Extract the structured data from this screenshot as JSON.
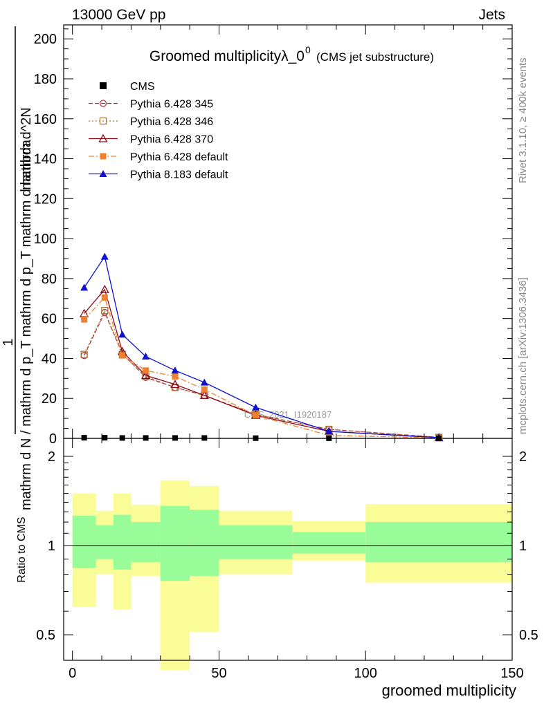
{
  "header": {
    "energy_label": "13000 GeV pp",
    "category_label": "Jets"
  },
  "title": {
    "main": "Groomed multiplicityλ_0",
    "superscript": "0",
    "sub": "(CMS jet substructure)"
  },
  "side_labels": {
    "rivet": "Rivet 3.1.10, ≥ 400k events",
    "mcplots": "mcplots.cern.ch [arXiv:1306.3436]"
  },
  "watermark": "CMS_2021_I1920187",
  "axes": {
    "main_ylabel_num": "1",
    "main_ylabel_den": "mathrm d N / mathrm d p_T mathrm d p_T mathrm d lambda",
    "main_ylabel_top": "mathrm d^2N",
    "ratio_ylabel": "Ratio to CMS",
    "xlabel": "groomed multiplicity"
  },
  "chart_data": {
    "type": "line",
    "xlim": [
      -3,
      150
    ],
    "ylim": [
      0,
      207
    ],
    "ratio_ylim": [
      0.41,
      2.3
    ],
    "x_ticks": [
      0,
      50,
      100,
      150
    ],
    "x_tick_labels": [
      "0",
      "50",
      "100",
      "150"
    ],
    "y_ticks": [
      0,
      20,
      40,
      60,
      80,
      100,
      120,
      140,
      160,
      180,
      200
    ],
    "y_tick_labels": [
      "0",
      "20",
      "40",
      "60",
      "80",
      "100",
      "120",
      "140",
      "160",
      "180",
      "200"
    ],
    "ratio_y_ticks": [
      0.5,
      1,
      2
    ],
    "ratio_y_tick_labels": [
      "0.5",
      "1",
      "2"
    ],
    "bin_edges": [
      0,
      8,
      14,
      20,
      30,
      40,
      50,
      75,
      100,
      150
    ],
    "x": [
      4,
      11,
      17,
      25,
      35,
      45,
      62.5,
      87.5,
      125
    ],
    "data_name": "CMS",
    "data_values": [
      0.3,
      0.3,
      0.2,
      0.2,
      0.2,
      0.2,
      0.1,
      0.05,
      0.02
    ],
    "series": [
      {
        "name": "Pythia 6.428 345",
        "color": "#b5323c",
        "marker": "open-circle",
        "dash": "6,3",
        "values": [
          41.5,
          63,
          42.5,
          30.5,
          25.5,
          21.5,
          12,
          4.5,
          0.5
        ]
      },
      {
        "name": "Pythia 6.428 346",
        "color": "#a07a3a",
        "marker": "open-square",
        "dash": "2,3",
        "values": [
          42,
          64,
          42,
          31,
          25.5,
          21.5,
          12,
          4.5,
          0.5
        ]
      },
      {
        "name": "Pythia 6.428 370",
        "color": "#8b0c17",
        "marker": "open-triangle",
        "dash": "",
        "values": [
          62.5,
          74.5,
          43.5,
          31.5,
          27,
          21.5,
          11.5,
          3.5,
          0.3
        ]
      },
      {
        "name": "Pythia 6.428 default",
        "color": "#f08030",
        "marker": "filled-square",
        "dash": "8,3,2,3",
        "values": [
          59.5,
          70.5,
          41.5,
          34,
          31,
          24.5,
          11.5,
          1.5,
          0.2
        ]
      },
      {
        "name": "Pythia 8.183 default",
        "color": "#1010d0",
        "marker": "filled-triangle",
        "dash": "",
        "values": [
          75.5,
          91,
          52,
          41,
          34,
          28,
          15.5,
          3.5,
          0.4
        ]
      }
    ],
    "ratio_bands": {
      "inner": [
        [
          0.84,
          1.26
        ],
        [
          0.9,
          1.17
        ],
        [
          0.83,
          1.27
        ],
        [
          0.88,
          1.2
        ],
        [
          0.76,
          1.36
        ],
        [
          0.79,
          1.32
        ],
        [
          0.9,
          1.17
        ],
        [
          0.94,
          1.11
        ],
        [
          0.88,
          1.2
        ]
      ],
      "outer": [
        [
          0.62,
          1.5
        ],
        [
          0.8,
          1.31
        ],
        [
          0.61,
          1.5
        ],
        [
          0.79,
          1.37
        ],
        [
          0.38,
          1.66
        ],
        [
          0.51,
          1.59
        ],
        [
          0.8,
          1.31
        ],
        [
          0.89,
          1.21
        ],
        [
          0.75,
          1.38
        ]
      ]
    }
  },
  "colors": {
    "band_inner": "#98fc98",
    "band_outer": "#fafc98",
    "data": "#000000"
  }
}
